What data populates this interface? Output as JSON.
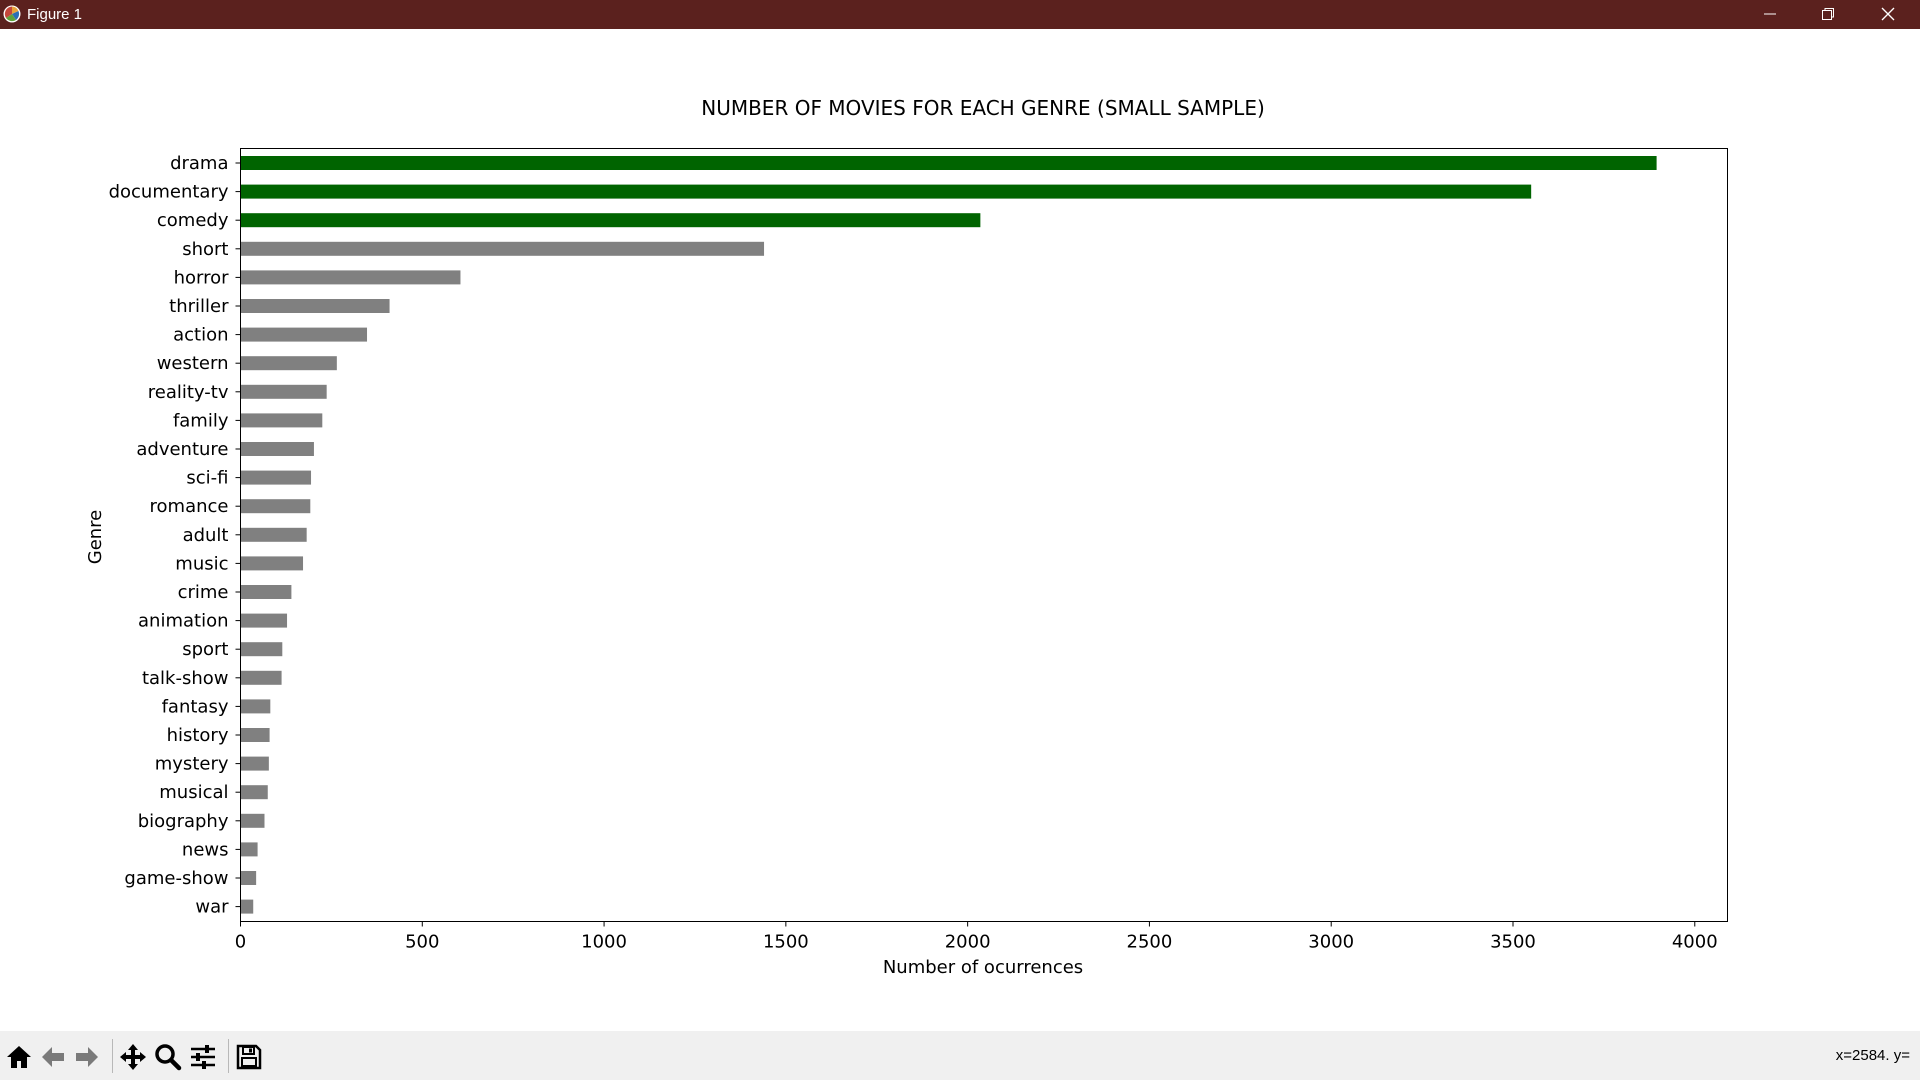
{
  "window": {
    "title": "Figure 1"
  },
  "status": {
    "coords": "x=2584. y="
  },
  "icons": {
    "app": "matplotlib-icon",
    "tools": [
      "home-icon",
      "back-arrow-icon",
      "forward-arrow-icon",
      "pan-icon",
      "zoom-icon",
      "configure-subplots-icon",
      "save-icon"
    ],
    "window": [
      "minimize-icon",
      "restore-icon",
      "close-icon"
    ]
  },
  "colors": {
    "highlight": "#006400",
    "default": "#808080",
    "titlebar": "#5b211e"
  },
  "chart_data": {
    "type": "bar",
    "orientation": "horizontal",
    "title": "NUMBER OF MOVIES FOR EACH GENRE (SMALL SAMPLE)",
    "xlabel": "Number of ocurrences",
    "ylabel": "Genre",
    "xlim": [
      0,
      4090
    ],
    "xticks": [
      0,
      500,
      1000,
      1500,
      2000,
      2500,
      3000,
      3500,
      4000
    ],
    "grid": false,
    "categories": [
      "drama",
      "documentary",
      "comedy",
      "short",
      "horror",
      "thriller",
      "action",
      "western",
      "reality-tv",
      "family",
      "adventure",
      "sci-fi",
      "romance",
      "adult",
      "music",
      "crime",
      "animation",
      "sport",
      "talk-show",
      "fantasy",
      "history",
      "mystery",
      "musical",
      "biography",
      "news",
      "game-show",
      "war"
    ],
    "values": [
      3895,
      3550,
      2035,
      1440,
      605,
      410,
      348,
      265,
      237,
      225,
      202,
      194,
      192,
      182,
      172,
      140,
      128,
      115,
      113,
      82,
      80,
      78,
      75,
      66,
      47,
      43,
      35
    ],
    "bar_colors": [
      "#006400",
      "#006400",
      "#006400",
      "#808080",
      "#808080",
      "#808080",
      "#808080",
      "#808080",
      "#808080",
      "#808080",
      "#808080",
      "#808080",
      "#808080",
      "#808080",
      "#808080",
      "#808080",
      "#808080",
      "#808080",
      "#808080",
      "#808080",
      "#808080",
      "#808080",
      "#808080",
      "#808080",
      "#808080",
      "#808080",
      "#808080"
    ]
  }
}
